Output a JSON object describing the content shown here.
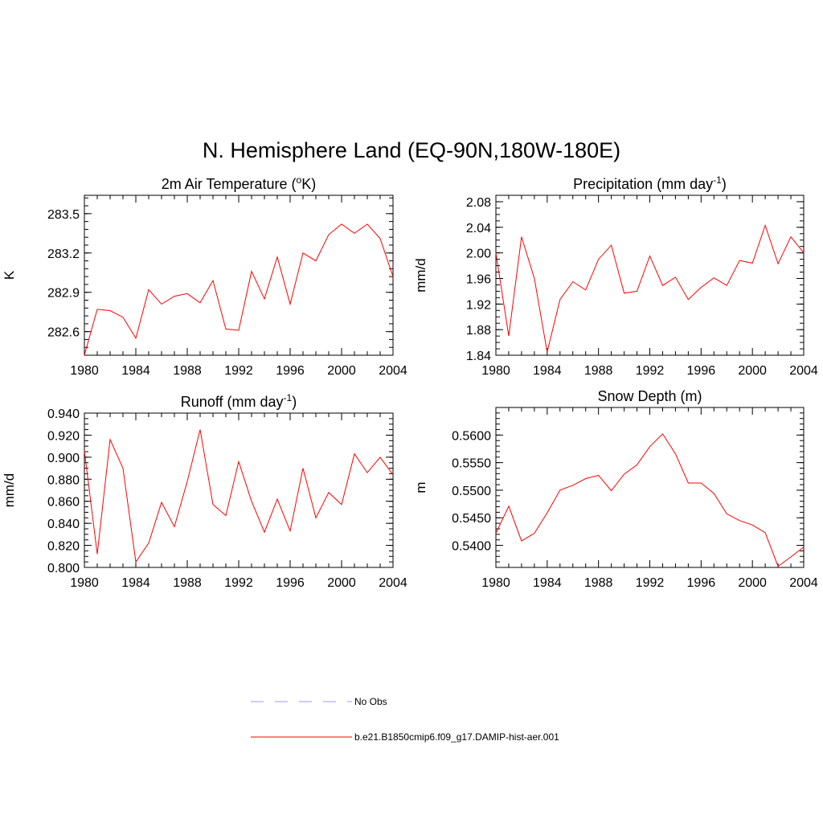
{
  "figure_title": "N. Hemisphere Land (EQ-90N,180W-180E)",
  "legend": [
    {
      "label": "No Obs",
      "color": "#9999ff",
      "dash": "dashed"
    },
    {
      "label": "b.e21.B1850cmip6.f09_g17.DAMIP-hist-aer.001",
      "color": "#ff0000",
      "dash": "solid"
    }
  ],
  "chart_data": [
    {
      "type": "line",
      "title": "2m Air Temperature (",
      "title_sup": "o",
      "title_after": "K)",
      "ylabel": "K",
      "xlim": [
        1980,
        2004
      ],
      "ylim": [
        282.42,
        283.64
      ],
      "x_ticks": [
        1980,
        1984,
        1988,
        1992,
        1996,
        2000,
        2004
      ],
      "y_ticks": [
        282.6,
        282.9,
        283.2,
        283.5
      ],
      "y_tick_labels": [
        "282.6",
        "282.9",
        "283.2",
        "283.5"
      ],
      "y_minor_step": 0.06,
      "series": [
        {
          "color": "#ff0000",
          "x": [
            1980,
            1981,
            1982,
            1983,
            1984,
            1985,
            1986,
            1987,
            1988,
            1989,
            1990,
            1991,
            1992,
            1993,
            1994,
            1995,
            1996,
            1997,
            1998,
            1999,
            2000,
            2001,
            2002,
            2003,
            2004
          ],
          "values": [
            282.42,
            282.77,
            282.76,
            282.71,
            282.55,
            282.92,
            282.81,
            282.87,
            282.89,
            282.82,
            282.99,
            282.62,
            282.61,
            283.06,
            282.85,
            283.17,
            282.81,
            283.2,
            283.14,
            283.34,
            283.42,
            283.35,
            283.42,
            283.31,
            283.02
          ]
        }
      ]
    },
    {
      "type": "line",
      "title": "Precipitation (mm day",
      "title_sup": "-1",
      "title_after": ")",
      "ylabel": "mm/d",
      "xlim": [
        1980,
        2004
      ],
      "ylim": [
        1.84,
        2.09
      ],
      "x_ticks": [
        1980,
        1984,
        1988,
        1992,
        1996,
        2000,
        2004
      ],
      "y_ticks": [
        1.84,
        1.88,
        1.92,
        1.96,
        2.0,
        2.04,
        2.08
      ],
      "y_tick_labels": [
        "1.84",
        "1.88",
        "1.92",
        "1.96",
        "2.00",
        "2.04",
        "2.08"
      ],
      "y_minor_step": 0.01,
      "series": [
        {
          "color": "#ff0000",
          "x": [
            1980,
            1981,
            1982,
            1983,
            1984,
            1985,
            1986,
            1987,
            1988,
            1989,
            1990,
            1991,
            1992,
            1993,
            1994,
            1995,
            1996,
            1997,
            1998,
            1999,
            2000,
            2001,
            2002,
            2003,
            2004
          ],
          "values": [
            2.0,
            1.87,
            2.025,
            1.96,
            1.845,
            1.927,
            1.955,
            1.942,
            1.99,
            2.012,
            1.937,
            1.94,
            1.995,
            1.949,
            1.962,
            1.927,
            1.946,
            1.961,
            1.949,
            1.988,
            1.984,
            2.043,
            1.983,
            2.025,
            2.0
          ]
        }
      ]
    },
    {
      "type": "line",
      "title": "Runoff (mm day",
      "title_sup": "-1",
      "title_after": ")",
      "ylabel": "mm/d",
      "xlim": [
        1980,
        2004
      ],
      "ylim": [
        0.8,
        0.94
      ],
      "x_ticks": [
        1980,
        1984,
        1988,
        1992,
        1996,
        2000,
        2004
      ],
      "y_ticks": [
        0.8,
        0.82,
        0.84,
        0.86,
        0.88,
        0.9,
        0.92,
        0.94
      ],
      "y_tick_labels": [
        "0.800",
        "0.820",
        "0.840",
        "0.860",
        "0.880",
        "0.900",
        "0.920",
        "0.940"
      ],
      "y_minor_step": 0.005,
      "series": [
        {
          "color": "#ff0000",
          "x": [
            1980,
            1981,
            1982,
            1983,
            1984,
            1985,
            1986,
            1987,
            1988,
            1989,
            1990,
            1991,
            1992,
            1993,
            1994,
            1995,
            1996,
            1997,
            1998,
            1999,
            2000,
            2001,
            2002,
            2003,
            2004
          ],
          "values": [
            0.906,
            0.812,
            0.916,
            0.89,
            0.805,
            0.822,
            0.859,
            0.837,
            0.878,
            0.925,
            0.857,
            0.847,
            0.896,
            0.86,
            0.832,
            0.862,
            0.833,
            0.89,
            0.845,
            0.868,
            0.857,
            0.903,
            0.886,
            0.9,
            0.884
          ]
        }
      ]
    },
    {
      "type": "line",
      "title": "Snow Depth (m)",
      "title_sup": "",
      "title_after": "",
      "ylabel": "m",
      "xlim": [
        1980,
        2004
      ],
      "ylim": [
        0.536,
        0.565
      ],
      "x_ticks": [
        1980,
        1984,
        1988,
        1992,
        1996,
        2000,
        2004
      ],
      "y_ticks": [
        0.54,
        0.545,
        0.55,
        0.555,
        0.56
      ],
      "y_tick_labels": [
        "0.5400",
        "0.5450",
        "0.5500",
        "0.5550",
        "0.5600"
      ],
      "y_minor_step": 0.001,
      "series": [
        {
          "color": "#ff0000",
          "x": [
            1980,
            1981,
            1982,
            1983,
            1984,
            1985,
            1986,
            1987,
            1988,
            1989,
            1990,
            1991,
            1992,
            1993,
            1994,
            1995,
            1996,
            1997,
            1998,
            1999,
            2000,
            2001,
            2002,
            2003,
            2004
          ],
          "values": [
            0.5422,
            0.5471,
            0.5408,
            0.5422,
            0.5459,
            0.55,
            0.5509,
            0.5521,
            0.5527,
            0.5499,
            0.5529,
            0.5546,
            0.5579,
            0.5602,
            0.5566,
            0.5513,
            0.5513,
            0.5494,
            0.5457,
            0.5445,
            0.5437,
            0.5423,
            0.5362,
            0.5379,
            0.5397
          ]
        }
      ]
    }
  ]
}
